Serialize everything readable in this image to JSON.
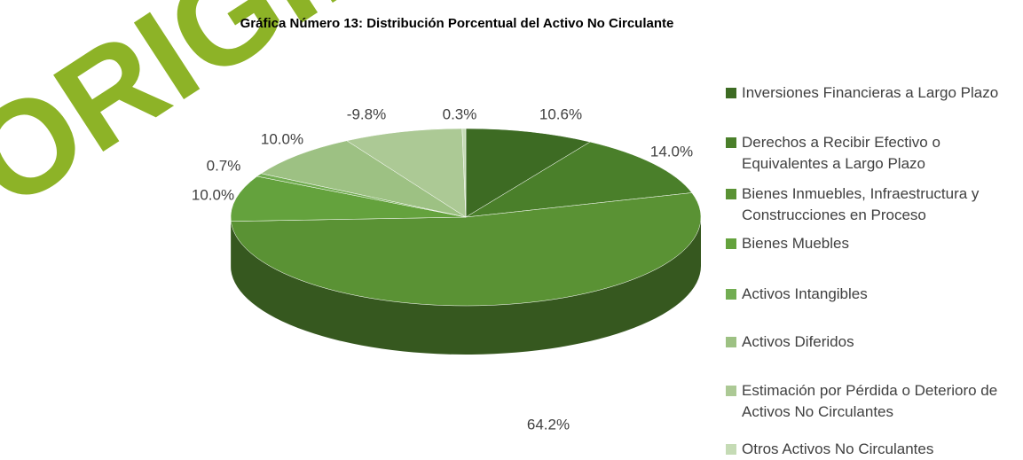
{
  "chart_data": {
    "type": "pie",
    "title": "Gráfica Número 13: Distribución Porcentual del Activo No Circulante",
    "watermark": "ORIGINAL",
    "categories": [
      "Inversiones Financieras a Largo Plazo",
      "Derechos a Recibir Efectivo o Equivalentes a Largo Plazo",
      "Bienes Inmuebles, Infraestructura y Construcciones en Proceso",
      "Bienes Muebles",
      "Activos Intangibles",
      "Activos Diferidos",
      "Estimación por Pérdida o Deterioro de Activos No Circulantes",
      "Otros Activos No Circulantes"
    ],
    "values": [
      10.6,
      14.0,
      64.2,
      10.0,
      0.7,
      10.0,
      -9.8,
      0.3
    ],
    "value_labels": [
      "10.6%",
      "14.0%",
      "64.2%",
      "10.0%",
      "0.7%",
      "10.0%",
      "-9.8%",
      "0.3%"
    ],
    "colors": [
      "#3d6b23",
      "#4a7f2a",
      "#5a9234",
      "#64a23d",
      "#72ad52",
      "#9dc183",
      "#acc995",
      "#c5dbb5"
    ],
    "legend": "right"
  }
}
